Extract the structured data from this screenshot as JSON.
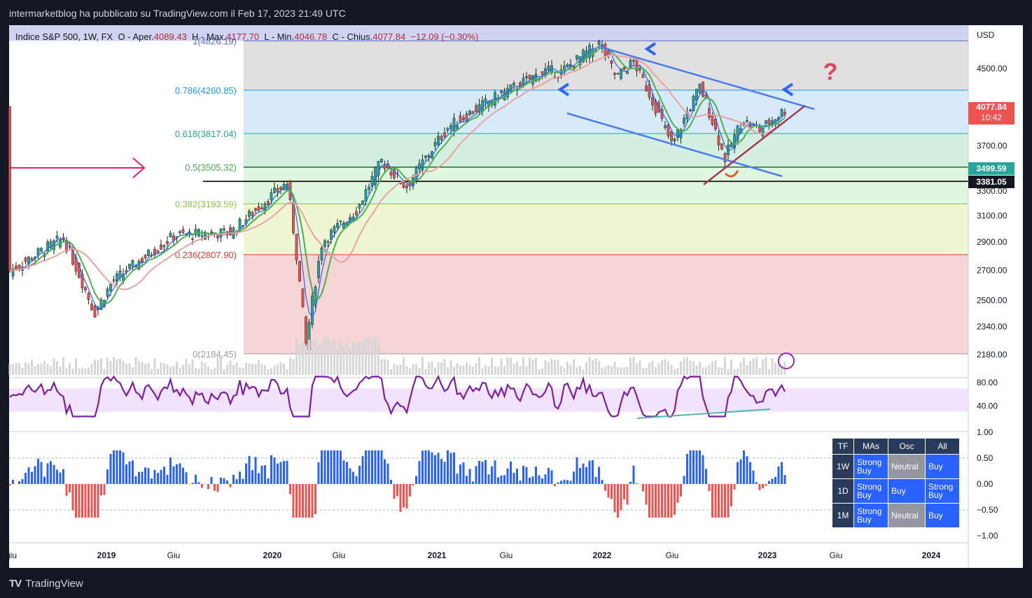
{
  "header": {
    "publish_line": "intermarketblog ha pubblicato su TradingView.com il Feb 17, 2023 21:49 UTC"
  },
  "ohlc": {
    "symbol": "Indice S&P 500, 1W, FX",
    "o_label": "O",
    "open_label": "Aper.",
    "open": "4089.43",
    "h_label": "H",
    "high_label": "Max.",
    "high": "4177.70",
    "l_label": "L",
    "low_label": "Min.",
    "low": "4046.78",
    "c_label": "C",
    "close_label": "Chius.",
    "close": "4077.84",
    "change": "−12.09 (−0.30%)"
  },
  "price_tags": {
    "current": "4077.84",
    "countdown": "10:42",
    "level_a": "3499.59",
    "level_b": "3381.05",
    "currency": "USD"
  },
  "chart_data": {
    "type": "candlestick",
    "price_axis": {
      "ticks": [
        "4500.00",
        "4077.84",
        "3700.00",
        "3300.00",
        "3100.00",
        "2900.00",
        "2700.00",
        "2500.00",
        "2340.00",
        "2180.00"
      ],
      "tick_values": [
        4500,
        4300,
        3700,
        3300,
        3100,
        2900,
        2700,
        2500,
        2340,
        2180
      ]
    },
    "time_axis": [
      "giu",
      "2019",
      "Giu",
      "2020",
      "Giu",
      "2021",
      "Giu",
      "2022",
      "Giu",
      "2023",
      "Giu",
      "2024"
    ],
    "fib_levels": [
      {
        "label": "1(4826.19)",
        "value": 4826.19,
        "color": "#5c6bc0"
      },
      {
        "label": "0.786(4260.85)",
        "value": 4260.85,
        "color": "#2196f3"
      },
      {
        "label": "0.618(3817.04)",
        "value": 3817.04,
        "color": "#26a69a"
      },
      {
        "label": "0.5(3505.32)",
        "value": 3505.32,
        "color": "#4caf50"
      },
      {
        "label": "0.382(3193.59)",
        "value": 3193.59,
        "color": "#8bc34a"
      },
      {
        "label": "0.236(2807.90)",
        "value": 2807.9,
        "color": "#e53935"
      },
      {
        "label": "0(2184.45)",
        "value": 2184.45,
        "color": "#9e9e9e"
      }
    ],
    "annotation": "?",
    "rsi": {
      "ticks": [
        "80.00",
        "40.00"
      ],
      "tick_values": [
        80,
        40
      ],
      "upper": 70,
      "lower": 30
    },
    "oscillator": {
      "ticks": [
        "1.00",
        "0.50",
        "0.00",
        "−0.50",
        "−1.00"
      ],
      "tick_values": [
        1,
        0.5,
        0,
        -0.5,
        -1
      ]
    }
  },
  "technical_table": {
    "headers": [
      "TF",
      "MAs",
      "Osc",
      "All"
    ],
    "rows": [
      {
        "tf": "1W",
        "mas": "Strong Buy",
        "osc": "Neutral",
        "all": "Buy"
      },
      {
        "tf": "1D",
        "mas": "Strong Buy",
        "osc": "Buy",
        "all": "Strong Buy"
      },
      {
        "tf": "1M",
        "mas": "Strong Buy",
        "osc": "Neutral",
        "all": "Buy"
      }
    ]
  },
  "footer": {
    "brand": "TradingView",
    "logo": "TV"
  },
  "colors": {
    "bull": "#26a69a",
    "bear": "#ef5350",
    "rsi": "#7b1fa2",
    "osc_pos": "#2962ff",
    "osc_neg": "#ef5350"
  }
}
